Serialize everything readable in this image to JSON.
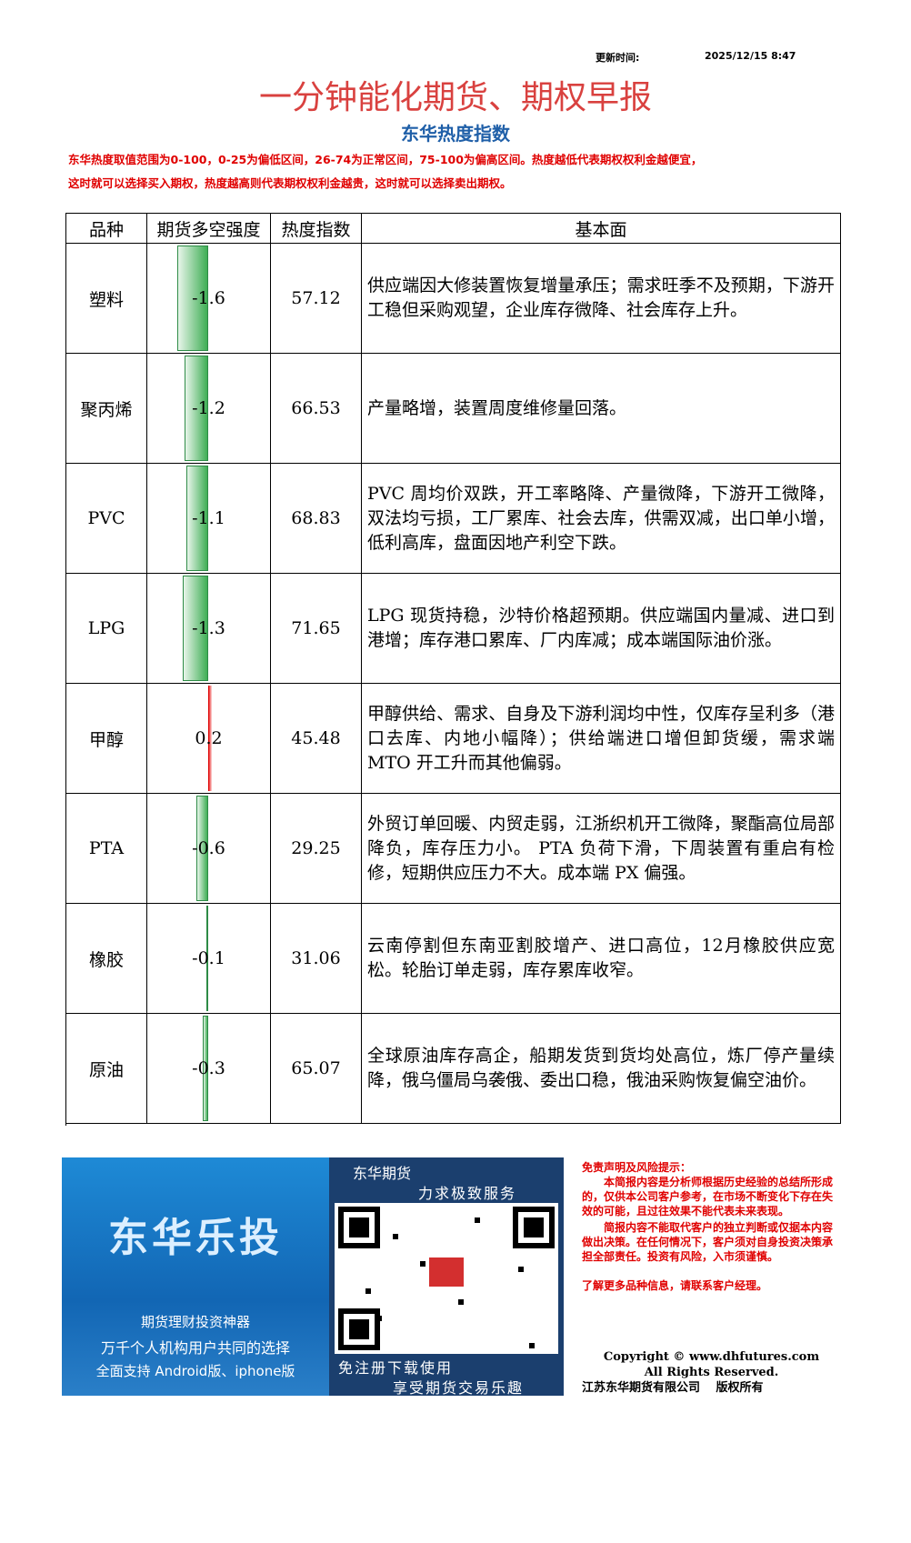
{
  "header": {
    "update_label": "更新时间:",
    "update_time": "2025/12/15 8:47",
    "title": "一分钟能化期货、期权早报",
    "subtitle": "东华热度指数",
    "notes": [
      "东华热度取值范围为0-100，0-25为偏低区间，26-74为正常区间，75-100为偏高区间。热度越低代表期权权利金越便宜，",
      "这时就可以选择买入期权，热度越高则代表期权权利金越贵，这时就可以选择卖出期权。"
    ]
  },
  "table": {
    "columns": [
      "品种",
      "期货多空强度",
      "热度指数",
      "基本面"
    ],
    "rows": [
      {
        "name": "塑料",
        "strength": -1.6,
        "heat": 57.12,
        "fundamentals": "供应端因大修装置恢复增量承压；需求旺季不及预期，下游开工稳但采购观望，企业库存微降、社会库存上升。"
      },
      {
        "name": "聚丙烯",
        "strength": -1.2,
        "heat": 66.53,
        "fundamentals": "产量略增，装置周度维修量回落。"
      },
      {
        "name": "PVC",
        "strength": -1.1,
        "heat": 68.83,
        "fundamentals": "PVC 周均价双跌，开工率略降、产量微降，下游开工微降，双法均亏损，工厂累库、社会去库，供需双减，出口单小增，低利高库，盘面因地产利空下跌。"
      },
      {
        "name": "LPG",
        "strength": -1.3,
        "heat": 71.65,
        "fundamentals": "LPG 现货持稳，沙特价格超预期。供应端国内量减、进口到港增；库存港口累库、厂内库减；成本端国际油价涨。"
      },
      {
        "name": "甲醇",
        "strength": 0.2,
        "heat": 45.48,
        "fundamentals": "甲醇供给、需求、自身及下游利润均中性，仅库存呈利多（港口去库、内地小幅降）；供给端进口增但卸货缓，需求端 MTO 开工升而其他偏弱。"
      },
      {
        "name": "PTA",
        "strength": -0.6,
        "heat": 29.25,
        "fundamentals": "外贸订单回暖、内贸走弱，江浙织机开工微降，聚酯高位局部降负，库存压力小。 PTA 负荷下滑，下周装置有重启有检修，短期供应压力不大。成本端 PX 偏强。"
      },
      {
        "name": "橡胶",
        "strength": -0.1,
        "heat": 31.06,
        "fundamentals": "云南停割但东南亚割胶增产、进口高位，12月橡胶供应宽松。轮胎订单走弱，库存累库收窄。"
      },
      {
        "name": "原油",
        "strength": -0.3,
        "heat": 65.07,
        "fundamentals": "全球原油库存高企，船期发货到货均处高位，炼厂停产量续降，俄乌僵局乌袭俄、委出口稳，俄油采购恢复偏空油价。"
      }
    ]
  },
  "ad": {
    "brand": "东华乐投",
    "slogan1": "期货理财投资神器",
    "slogan2": "万千个人机构用户共同的选择",
    "slogan3": "全面支持 Android版、iphone版",
    "qr_top1": "东华期货",
    "qr_top2": "力求极致服务",
    "qr_bottom1": "免注册下载使用",
    "qr_bottom2": "享受期货交易乐趣"
  },
  "disclaimer": {
    "title": "免责声明及风险提示：",
    "p1": "本简报内容是分析师根据历史经验的总结所形成的，仅供本公司客户参考，在市场不断变化下存在失效的可能，且过往效果不能代表未来表现。",
    "p2": "简报内容不能取代客户的独立判断或仅据本内容做出决策。在任何情况下，客户须对自身投资决策承担全部责任。投资有风险，入市须谨慎。",
    "contact": "了解更多品种信息，请联系客户经理。",
    "copyright1": "Copyright © www.dhfutures.com",
    "copyright2": "All Rights Reserved.",
    "company": "江苏东华期货有限公司　 版权所有"
  }
}
